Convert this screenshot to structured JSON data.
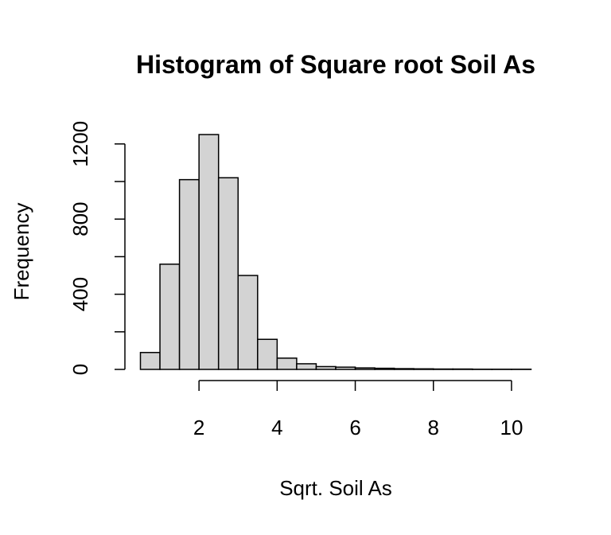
{
  "chart_data": {
    "type": "bar",
    "title": "Histogram of Square root Soil As",
    "xlabel": "Sqrt. Soil As",
    "ylabel": "Frequency",
    "bin_width": 0.5,
    "x_start": 0.5,
    "values": [
      90,
      560,
      1010,
      1250,
      1020,
      500,
      160,
      60,
      30,
      15,
      12,
      8,
      6,
      4,
      3,
      2,
      2,
      1,
      1,
      1
    ],
    "xlim": [
      0.5,
      10.5
    ],
    "ylim": [
      0,
      1250
    ],
    "x_ticks": [
      "2",
      "4",
      "6",
      "8",
      "10"
    ],
    "y_ticks": [
      "0",
      "400",
      "800",
      "1200"
    ],
    "bar_fill": "#d3d3d3",
    "bar_stroke": "#000000",
    "grid": false,
    "legend": "none"
  }
}
